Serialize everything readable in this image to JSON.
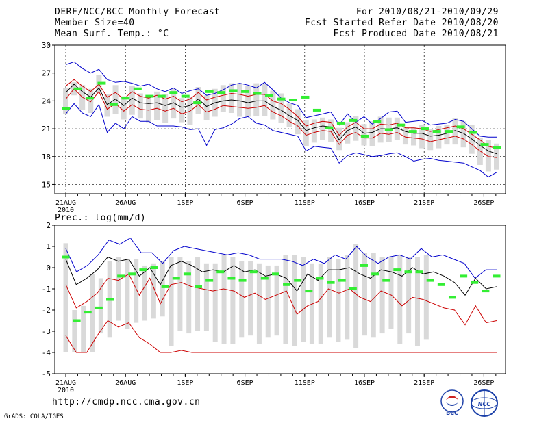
{
  "header": {
    "title": "DERF/NCC/BCC Monthly Forecast",
    "member_size": "Member Size=40",
    "variable": "Mean Surf. Temp.: °C",
    "period": "For 2010/08/21-2010/09/29",
    "fcst_started": "Fcst Started Refer Date 2010/08/20",
    "fcst_produced": "Fcst Produced Date 2010/08/21"
  },
  "footer": {
    "url": "http://cmdp.ncc.cma.gov.cn",
    "grads": "GrADS: COLA/IGES",
    "logo_bcc": "BCC",
    "logo_ncc": "NCC"
  },
  "colors": {
    "max_min": "#0000cc",
    "pct": "#cc0000",
    "mean": "#000000",
    "obs": "#33ee33",
    "box": "#d9d9d9",
    "grid": "#000000"
  },
  "chart_data": [
    {
      "type": "line",
      "name": "temperature",
      "title": "Mean Surf. Temp.: °C",
      "xlabel_year": "2010",
      "x_tick_labels": [
        "21AUG",
        "26AUG",
        "1SEP",
        "6SEP",
        "11SEP",
        "16SEP",
        "21SEP",
        "26SEP"
      ],
      "y_ticks": [
        15,
        18,
        21,
        24,
        27,
        30
      ],
      "ylim": [
        14,
        30
      ],
      "days": 38,
      "series": [
        {
          "name": "max",
          "values": [
            27.9,
            28.2,
            27.5,
            27.0,
            27.4,
            26.3,
            26.0,
            26.1,
            25.9,
            25.6,
            25.8,
            25.3,
            25.0,
            25.4,
            24.8,
            25.1,
            25.3,
            24.6,
            24.8,
            25.2,
            25.7,
            25.9,
            25.7,
            25.4,
            26.0,
            25.2,
            24.3,
            23.8,
            23.5,
            22.2,
            22.4,
            22.6,
            22.8,
            21.4,
            22.6,
            21.7,
            22.3,
            21.5,
            22.1,
            22.8,
            22.9,
            21.7,
            21.8,
            21.9,
            21.4,
            21.5,
            21.6,
            22.0,
            21.8,
            21.0,
            20.2,
            20.1,
            20.1
          ]
        },
        {
          "name": "p75",
          "values": [
            25.6,
            26.3,
            25.6,
            25.0,
            25.8,
            24.4,
            24.9,
            24.2,
            25.0,
            24.5,
            24.3,
            24.6,
            24.2,
            24.5,
            23.9,
            24.2,
            24.9,
            24.1,
            24.4,
            24.6,
            24.8,
            24.7,
            24.5,
            24.7,
            24.7,
            24.0,
            23.7,
            23.1,
            22.3,
            21.3,
            21.6,
            21.8,
            21.7,
            20.3,
            21.2,
            21.7,
            21.0,
            21.0,
            21.5,
            21.4,
            21.6,
            21.1,
            21.1,
            21.0,
            20.7,
            20.9,
            21.1,
            21.3,
            21.0,
            20.4,
            19.8,
            19.1,
            18.9
          ]
        },
        {
          "name": "mean",
          "values": [
            24.9,
            25.8,
            25.0,
            24.4,
            25.4,
            23.6,
            24.2,
            23.5,
            24.3,
            23.8,
            23.7,
            23.8,
            23.5,
            23.8,
            23.3,
            23.5,
            24.2,
            23.4,
            23.8,
            24.0,
            24.1,
            24.0,
            23.8,
            24.0,
            24.0,
            23.4,
            23.0,
            22.4,
            21.9,
            20.8,
            21.1,
            21.3,
            21.2,
            19.8,
            20.8,
            21.2,
            20.5,
            20.6,
            21.0,
            21.0,
            21.1,
            20.7,
            20.5,
            20.5,
            20.2,
            20.3,
            20.5,
            20.8,
            20.5,
            19.9,
            19.2,
            18.6,
            18.3
          ]
        },
        {
          "name": "p25",
          "values": [
            24.2,
            25.3,
            24.4,
            23.9,
            25.0,
            23.1,
            23.7,
            22.9,
            23.6,
            23.1,
            23.0,
            23.2,
            22.9,
            23.2,
            22.6,
            22.9,
            23.6,
            22.8,
            23.1,
            23.5,
            23.4,
            23.3,
            23.2,
            23.3,
            23.5,
            22.8,
            22.4,
            21.8,
            21.3,
            20.3,
            20.6,
            20.8,
            20.7,
            19.3,
            20.3,
            20.6,
            20.0,
            20.0,
            20.5,
            20.4,
            20.6,
            20.1,
            20.0,
            19.9,
            19.6,
            19.8,
            20.0,
            20.2,
            19.9,
            19.3,
            18.6,
            18.0,
            17.9
          ]
        },
        {
          "name": "min",
          "values": [
            22.6,
            23.7,
            22.7,
            22.3,
            23.6,
            20.6,
            21.6,
            21.0,
            22.3,
            21.8,
            21.8,
            21.3,
            21.3,
            21.3,
            21.2,
            20.9,
            21.0,
            19.2,
            20.9,
            21.1,
            21.5,
            22.1,
            22.3,
            21.6,
            21.4,
            20.8,
            20.6,
            20.4,
            20.2,
            18.6,
            19.1,
            19.0,
            18.9,
            17.3,
            18.1,
            18.4,
            18.2,
            18.0,
            18.1,
            18.3,
            18.4,
            18.0,
            17.5,
            17.7,
            17.8,
            17.6,
            17.5,
            17.4,
            17.3,
            16.9,
            16.5,
            15.8,
            16.3
          ]
        },
        {
          "name": "box_high",
          "values": [
            25.4,
            26.0,
            25.7,
            25.3,
            26.8,
            24.7,
            25.7,
            24.5,
            25.6,
            24.8,
            24.6,
            25.0,
            24.7,
            25.3,
            24.3,
            24.4,
            25.5,
            24.6,
            25.3,
            25.7,
            25.9,
            25.9,
            25.6,
            25.9,
            25.8,
            25.1,
            24.8,
            23.7,
            23.1,
            21.9,
            22.0,
            22.2,
            22.0,
            21.1,
            21.7,
            22.4,
            21.5,
            21.8,
            22.3,
            22.2,
            22.2,
            21.2,
            21.2,
            21.4,
            21.0,
            21.3,
            21.4,
            22.1,
            21.8,
            21.4,
            20.0,
            19.8,
            19.4
          ]
        },
        {
          "name": "box_low",
          "values": [
            22.6,
            24.6,
            23.0,
            22.7,
            24.8,
            22.3,
            22.6,
            22.0,
            22.5,
            22.1,
            21.7,
            21.9,
            21.6,
            22.1,
            21.7,
            21.4,
            22.6,
            21.9,
            22.3,
            22.8,
            22.7,
            22.3,
            22.3,
            22.4,
            22.4,
            22.0,
            21.6,
            21.2,
            20.4,
            19.1,
            19.5,
            19.8,
            19.6,
            18.7,
            19.4,
            19.7,
            19.2,
            19.1,
            19.5,
            19.6,
            19.8,
            19.3,
            19.2,
            18.9,
            18.7,
            18.9,
            19.3,
            19.3,
            19.0,
            18.3,
            17.1,
            16.4,
            16.6
          ]
        },
        {
          "name": "obs",
          "values": [
            23.2,
            25.3,
            24.3,
            25.9,
            23.6,
            24.3,
            25.3,
            24.5,
            24.5,
            24.9,
            24.5,
            23.8,
            25.0,
            24.9,
            25.1,
            25.0,
            24.8,
            24.6,
            24.2,
            24.1,
            24.4,
            23.0,
            21.1,
            21.6,
            21.9,
            20.2,
            21.8,
            20.9,
            21.4,
            20.7,
            21.0,
            20.7,
            20.7,
            21.2,
            20.6,
            19.3,
            19.0
          ]
        }
      ]
    },
    {
      "type": "line",
      "name": "precipitation",
      "title": "Prec.: log(mm/d)",
      "xlabel_year": "2010",
      "x_tick_labels": [
        "21AUG",
        "26AUG",
        "1SEP",
        "6SEP",
        "11SEP",
        "16SEP",
        "21SEP",
        "26SEP"
      ],
      "y_ticks": [
        -5,
        -4,
        -3,
        -2,
        -1,
        0,
        1,
        2
      ],
      "ylim": [
        -5,
        2
      ],
      "days": 38,
      "series": [
        {
          "name": "max",
          "values": [
            0.9,
            -0.2,
            0.1,
            0.6,
            1.3,
            1.1,
            1.4,
            0.7,
            0.7,
            0.2,
            0.8,
            1.0,
            0.9,
            0.8,
            0.7,
            0.6,
            0.7,
            0.6,
            0.4,
            0.4,
            0.4,
            0.3,
            0.1,
            0.4,
            0.2,
            0.6,
            0.4,
            1.0,
            0.5,
            0.2,
            0.5,
            0.6,
            0.4,
            0.9,
            0.5,
            0.6,
            0.4,
            0.2,
            -0.5,
            -0.1,
            -0.1
          ]
        },
        {
          "name": "mean",
          "values": [
            0.4,
            -0.8,
            -0.5,
            -0.1,
            0.5,
            0.3,
            0.4,
            -0.4,
            0.0,
            -0.8,
            0.1,
            0.3,
            0.1,
            -0.2,
            -0.1,
            -0.2,
            0.1,
            -0.2,
            -0.1,
            -0.4,
            -0.3,
            -0.5,
            -1.1,
            -0.3,
            -0.6,
            -0.1,
            -0.1,
            0.0,
            -0.3,
            -0.5,
            -0.1,
            -0.2,
            -0.4,
            0.0,
            -0.3,
            -0.2,
            -0.4,
            -0.7,
            -1.3,
            -0.5,
            -1.0,
            -0.9
          ]
        },
        {
          "name": "p25",
          "values": [
            -0.8,
            -1.9,
            -1.6,
            -1.2,
            -0.5,
            -0.6,
            -0.3,
            -1.3,
            -0.5,
            -1.7,
            -0.8,
            -0.7,
            -0.9,
            -1.0,
            -1.1,
            -1.0,
            -1.1,
            -1.4,
            -1.2,
            -1.5,
            -1.3,
            -1.1,
            -2.2,
            -1.8,
            -1.6,
            -1.0,
            -1.2,
            -1.0,
            -1.4,
            -1.6,
            -1.1,
            -1.3,
            -1.8,
            -1.4,
            -1.5,
            -1.7,
            -1.9,
            -2.0,
            -2.7,
            -1.8,
            -2.6,
            -2.5
          ]
        },
        {
          "name": "p10",
          "values": [
            -3.2,
            -4.0,
            -4.0,
            -3.2,
            -2.5,
            -2.8,
            -2.6,
            -3.3,
            -3.6,
            -4.0,
            -4.0,
            -3.9,
            -4.0,
            -4.0,
            -4.0,
            -4.0,
            -4.0,
            -4.0,
            -4.0,
            -4.0,
            -4.0,
            -4.0,
            -4.0,
            -4.0,
            -4.0,
            -4.0,
            -4.0,
            -4.0,
            -4.0,
            -4.0,
            -4.0,
            -4.0,
            -4.0,
            -4.0,
            -4.0,
            -4.0,
            -4.0,
            -4.0,
            -4.0,
            -4.0,
            -4.0,
            -4.0
          ]
        },
        {
          "name": "box_high",
          "values": [
            1.15,
            -2.0,
            -1.8,
            -0.3,
            -0.5,
            0.3,
            0.5,
            0.4,
            0.4,
            0.1,
            0.2,
            0.3,
            0.5,
            0.5,
            0.3,
            0.5,
            0.2,
            0.2,
            0.6,
            0.5,
            0.3,
            0.3,
            0.2,
            0.1,
            0.1,
            0.6,
            0.6,
            0.5,
            0.2,
            0.2,
            0.5,
            0.4,
            0.6,
            1.1,
            0.7,
            0.7,
            0.5,
            0.5,
            0.6,
            0.5,
            0.5,
            0.6,
            0.5,
            0.4,
            0.3,
            0.2,
            0.6,
            0.1,
            0.3,
            0.45
          ]
        },
        {
          "name": "box_low",
          "values": [
            -4.0,
            -4.0,
            -4.0,
            -4.0,
            -3.1,
            -3.3,
            -2.5,
            -2.9,
            -2.6,
            -2.5,
            -2.4,
            -2.3,
            -3.7,
            -3.0,
            -3.1,
            -3.0,
            -3.0,
            -3.5,
            -3.6,
            -3.6,
            -3.3,
            -3.2,
            -3.6,
            -3.3,
            -3.2,
            -3.6,
            -3.7,
            -3.5,
            -3.6,
            -3.6,
            -3.3,
            -3.5,
            -3.4,
            -3.8,
            -3.2,
            -3.3,
            -3.1,
            -2.9,
            -3.6,
            -3.1,
            -3.7,
            -3.4
          ]
        },
        {
          "name": "obs",
          "values": [
            0.5,
            -2.5,
            -2.1,
            -1.9,
            -1.5,
            -0.4,
            -0.3,
            -0.1,
            0.0,
            -0.9,
            -0.5,
            -0.3,
            -0.9,
            -0.6,
            -0.2,
            -0.5,
            -0.6,
            -0.2,
            -0.5,
            -0.3,
            -0.8,
            -0.6,
            -1.1,
            -0.5,
            -0.7,
            -0.6,
            -1.0,
            0.1,
            -0.3,
            -0.6,
            -0.1,
            -0.2,
            -0.2,
            -0.6,
            -0.8,
            -1.4,
            -0.4,
            -0.7,
            -1.1,
            -0.4
          ]
        }
      ]
    }
  ]
}
